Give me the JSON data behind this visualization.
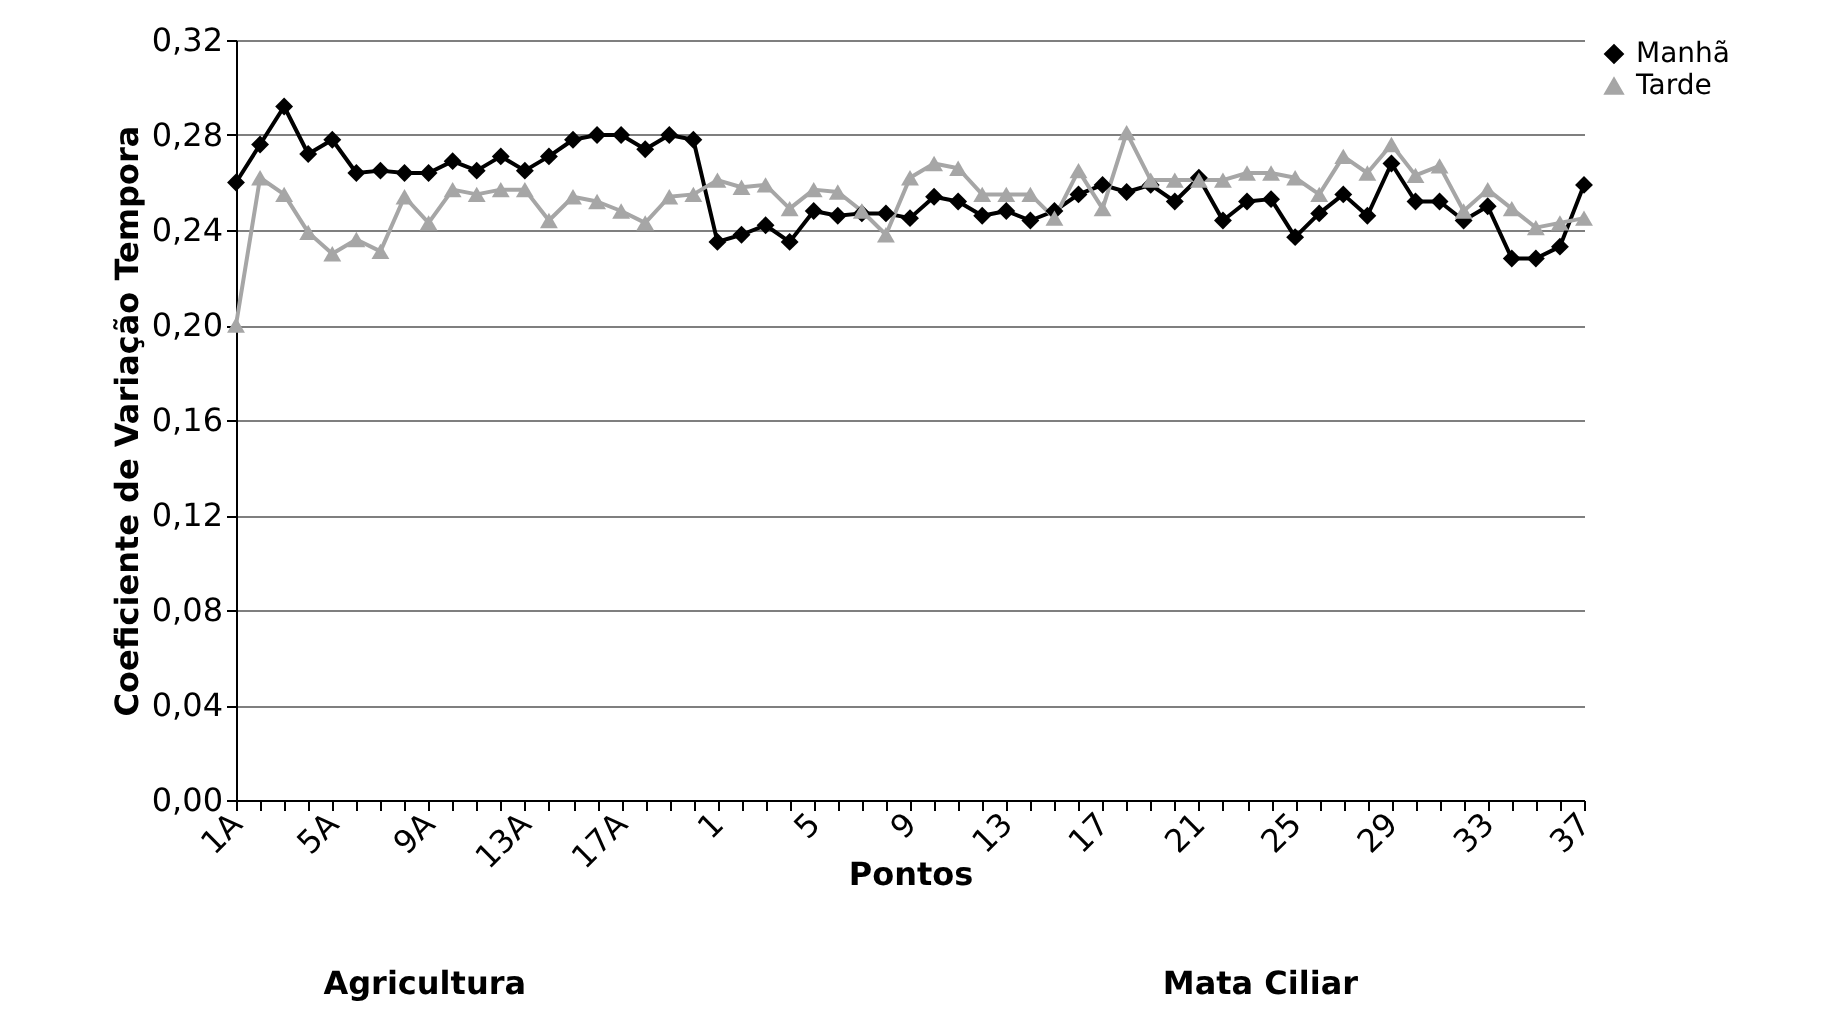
{
  "chart_data": {
    "type": "line",
    "xlabel": "Pontos",
    "ylabel": "Coeficiente de Variação Tempora",
    "categories": [
      "1A",
      null,
      null,
      null,
      "5A",
      null,
      null,
      null,
      "9A",
      null,
      null,
      null,
      "13A",
      null,
      null,
      null,
      "17A",
      null,
      null,
      null,
      "1",
      null,
      null,
      null,
      "5",
      null,
      null,
      null,
      "9",
      null,
      null,
      null,
      "13",
      null,
      null,
      null,
      "17",
      null,
      null,
      null,
      "21",
      null,
      null,
      null,
      "25",
      null,
      null,
      null,
      "29",
      null,
      null,
      null,
      "33",
      null,
      null,
      null,
      "37"
    ],
    "series": [
      {
        "name": "Manhã",
        "color": "#000000",
        "marker": "diamond",
        "values": [
          0.26,
          0.276,
          0.292,
          0.272,
          0.278,
          0.264,
          0.265,
          0.264,
          0.264,
          0.269,
          0.265,
          0.271,
          0.265,
          0.271,
          0.278,
          0.28,
          0.28,
          0.274,
          0.28,
          0.278,
          0.235,
          0.238,
          0.242,
          0.235,
          0.248,
          0.246,
          0.247,
          0.247,
          0.245,
          0.254,
          0.252,
          0.246,
          0.248,
          0.244,
          0.248,
          0.255,
          0.259,
          0.256,
          0.259,
          0.252,
          0.262,
          0.244,
          0.252,
          0.253,
          0.237,
          0.247,
          0.255,
          0.246,
          0.268,
          0.252,
          0.252,
          0.244,
          0.25,
          0.228,
          0.228,
          0.233,
          0.259
        ]
      },
      {
        "name": "Tarde",
        "color": "#a6a6a6",
        "marker": "triangle",
        "values": [
          0.2,
          0.262,
          0.255,
          0.239,
          0.23,
          0.236,
          0.231,
          0.254,
          0.243,
          0.257,
          0.255,
          0.257,
          0.257,
          0.244,
          0.254,
          0.252,
          0.248,
          0.243,
          0.254,
          0.255,
          0.261,
          0.258,
          0.259,
          0.249,
          0.257,
          0.256,
          0.248,
          0.238,
          0.262,
          0.268,
          0.266,
          0.255,
          0.255,
          0.255,
          0.245,
          0.265,
          0.249,
          0.281,
          0.261,
          0.261,
          0.261,
          0.261,
          0.264,
          0.264,
          0.262,
          0.255,
          0.271,
          0.264,
          0.276,
          0.263,
          0.267,
          0.248,
          0.257,
          0.249,
          0.241,
          0.243,
          0.245
        ]
      }
    ],
    "ylim": [
      0,
      0.32
    ],
    "yticks": [
      {
        "value": 0,
        "label": "0,00"
      },
      {
        "value": 0.04,
        "label": "0,04"
      },
      {
        "value": 0.08,
        "label": "0,08"
      },
      {
        "value": 0.12,
        "label": "0,12"
      },
      {
        "value": 0.16,
        "label": "0,16"
      },
      {
        "value": 0.2,
        "label": "0,20"
      },
      {
        "value": 0.24,
        "label": "0,24"
      },
      {
        "value": 0.28,
        "label": "0,28"
      },
      {
        "value": 0.32,
        "label": "0,32"
      }
    ],
    "grid": "y",
    "legend": "top right",
    "line_style": "solid",
    "annotations": [
      "Agricultura",
      "Mata Ciliar"
    ]
  }
}
